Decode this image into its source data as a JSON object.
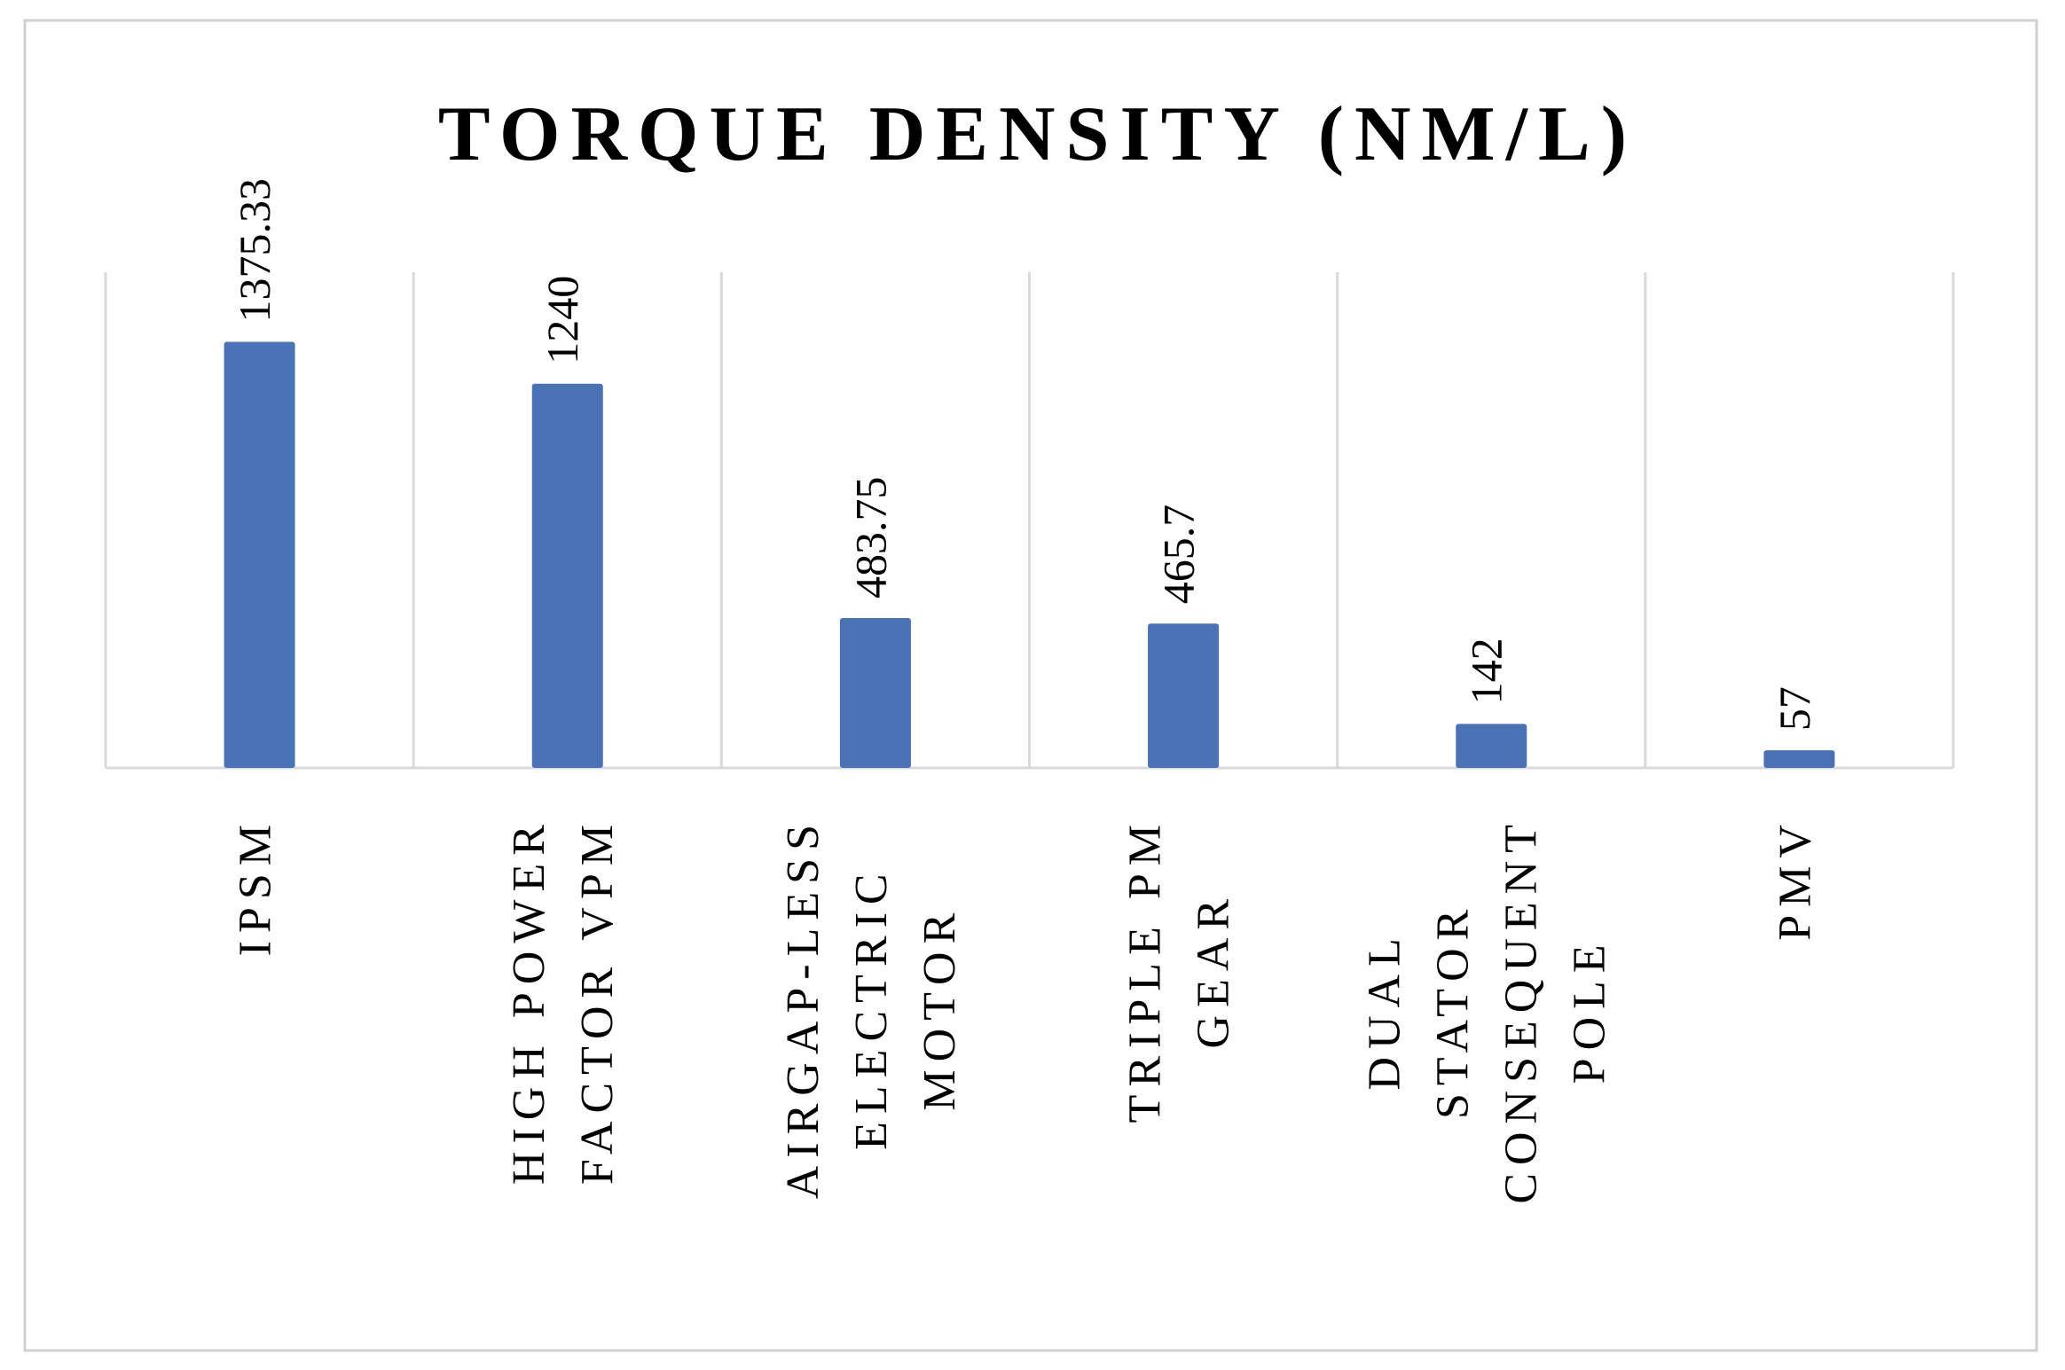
{
  "chart_data": {
    "type": "bar",
    "title": "TORQUE DENSITY (NM/L)",
    "categories": [
      "IPSM",
      "HIGH POWER FACTOR VPM",
      "AIRGAP-LESS ELECTRIC MOTOR",
      "TRIPLE PM GEAR",
      "DUAL STATOR CONSEQUENT POLE",
      "PMV"
    ],
    "values": [
      1375.33,
      1240,
      483.75,
      465.7,
      142,
      57
    ],
    "color": "#4a72b4",
    "ylim": [
      0,
      1600
    ]
  }
}
